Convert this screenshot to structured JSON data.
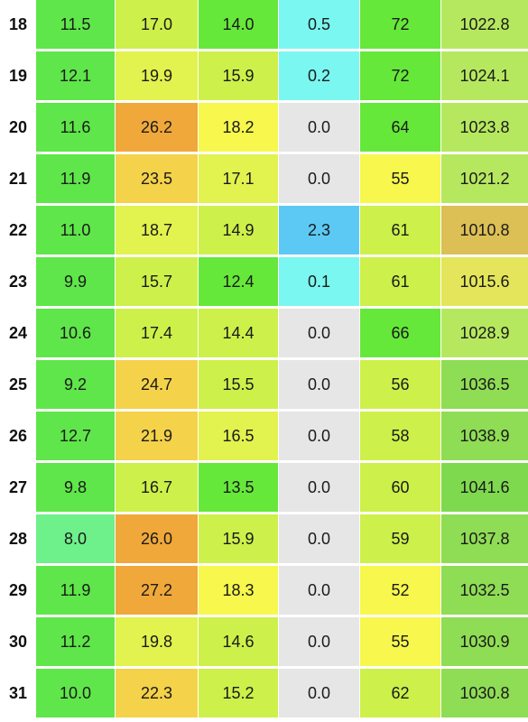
{
  "colors": {
    "lime": "#66e83a",
    "green": "#5fe64a",
    "mint": "#6ef08a",
    "yellow_green": "#cdf04a",
    "light_yellow_green": "#e2f24e",
    "yellow": "#f7f74d",
    "gold": "#f4d24a",
    "orange": "#f0a83a",
    "cyan": "#7af7f0",
    "sky": "#5cc9f5",
    "grey": "#e6e6e6",
    "olive_gold": "#dcbf55",
    "khaki": "#e4e55a",
    "pale_green": "#b6e85f",
    "medium_green": "#8fdc55",
    "green2": "#7fd94f"
  },
  "rows": [
    {
      "day": "18",
      "c1": "11.5",
      "c2": "17.0",
      "c3": "14.0",
      "c4": "0.5",
      "c5": "72",
      "c6": "1022.8",
      "bg": [
        "green",
        "yellow_green",
        "lime",
        "cyan",
        "lime",
        "pale_green"
      ]
    },
    {
      "day": "19",
      "c1": "12.1",
      "c2": "19.9",
      "c3": "15.9",
      "c4": "0.2",
      "c5": "72",
      "c6": "1024.1",
      "bg": [
        "green",
        "light_yellow_green",
        "yellow_green",
        "cyan",
        "lime",
        "pale_green"
      ]
    },
    {
      "day": "20",
      "c1": "11.6",
      "c2": "26.2",
      "c3": "18.2",
      "c4": "0.0",
      "c5": "64",
      "c6": "1023.8",
      "bg": [
        "green",
        "orange",
        "yellow",
        "grey",
        "lime",
        "pale_green"
      ]
    },
    {
      "day": "21",
      "c1": "11.9",
      "c2": "23.5",
      "c3": "17.1",
      "c4": "0.0",
      "c5": "55",
      "c6": "1021.2",
      "bg": [
        "green",
        "gold",
        "light_yellow_green",
        "grey",
        "yellow",
        "pale_green"
      ]
    },
    {
      "day": "22",
      "c1": "11.0",
      "c2": "18.7",
      "c3": "14.9",
      "c4": "2.3",
      "c5": "61",
      "c6": "1010.8",
      "bg": [
        "green",
        "light_yellow_green",
        "yellow_green",
        "sky",
        "yellow_green",
        "olive_gold"
      ]
    },
    {
      "day": "23",
      "c1": "9.9",
      "c2": "15.7",
      "c3": "12.4",
      "c4": "0.1",
      "c5": "61",
      "c6": "1015.6",
      "bg": [
        "green",
        "yellow_green",
        "lime",
        "cyan",
        "yellow_green",
        "khaki"
      ]
    },
    {
      "day": "24",
      "c1": "10.6",
      "c2": "17.4",
      "c3": "14.4",
      "c4": "0.0",
      "c5": "66",
      "c6": "1028.9",
      "bg": [
        "green",
        "yellow_green",
        "yellow_green",
        "grey",
        "lime",
        "pale_green"
      ]
    },
    {
      "day": "25",
      "c1": "9.2",
      "c2": "24.7",
      "c3": "15.5",
      "c4": "0.0",
      "c5": "56",
      "c6": "1036.5",
      "bg": [
        "green",
        "gold",
        "yellow_green",
        "grey",
        "yellow_green",
        "medium_green"
      ]
    },
    {
      "day": "26",
      "c1": "12.7",
      "c2": "21.9",
      "c3": "16.5",
      "c4": "0.0",
      "c5": "58",
      "c6": "1038.9",
      "bg": [
        "green",
        "gold",
        "light_yellow_green",
        "grey",
        "yellow_green",
        "medium_green"
      ]
    },
    {
      "day": "27",
      "c1": "9.8",
      "c2": "16.7",
      "c3": "13.5",
      "c4": "0.0",
      "c5": "60",
      "c6": "1041.6",
      "bg": [
        "green",
        "yellow_green",
        "lime",
        "grey",
        "yellow_green",
        "green2"
      ]
    },
    {
      "day": "28",
      "c1": "8.0",
      "c2": "26.0",
      "c3": "15.9",
      "c4": "0.0",
      "c5": "59",
      "c6": "1037.8",
      "bg": [
        "mint",
        "orange",
        "yellow_green",
        "grey",
        "yellow_green",
        "medium_green"
      ]
    },
    {
      "day": "29",
      "c1": "11.9",
      "c2": "27.2",
      "c3": "18.3",
      "c4": "0.0",
      "c5": "52",
      "c6": "1032.5",
      "bg": [
        "green",
        "orange",
        "yellow",
        "grey",
        "yellow",
        "medium_green"
      ]
    },
    {
      "day": "30",
      "c1": "11.2",
      "c2": "19.8",
      "c3": "14.6",
      "c4": "0.0",
      "c5": "55",
      "c6": "1030.9",
      "bg": [
        "green",
        "light_yellow_green",
        "yellow_green",
        "grey",
        "yellow",
        "medium_green"
      ]
    },
    {
      "day": "31",
      "c1": "10.0",
      "c2": "22.3",
      "c3": "15.2",
      "c4": "0.0",
      "c5": "62",
      "c6": "1030.8",
      "bg": [
        "green",
        "gold",
        "yellow_green",
        "grey",
        "yellow_green",
        "medium_green"
      ]
    }
  ]
}
